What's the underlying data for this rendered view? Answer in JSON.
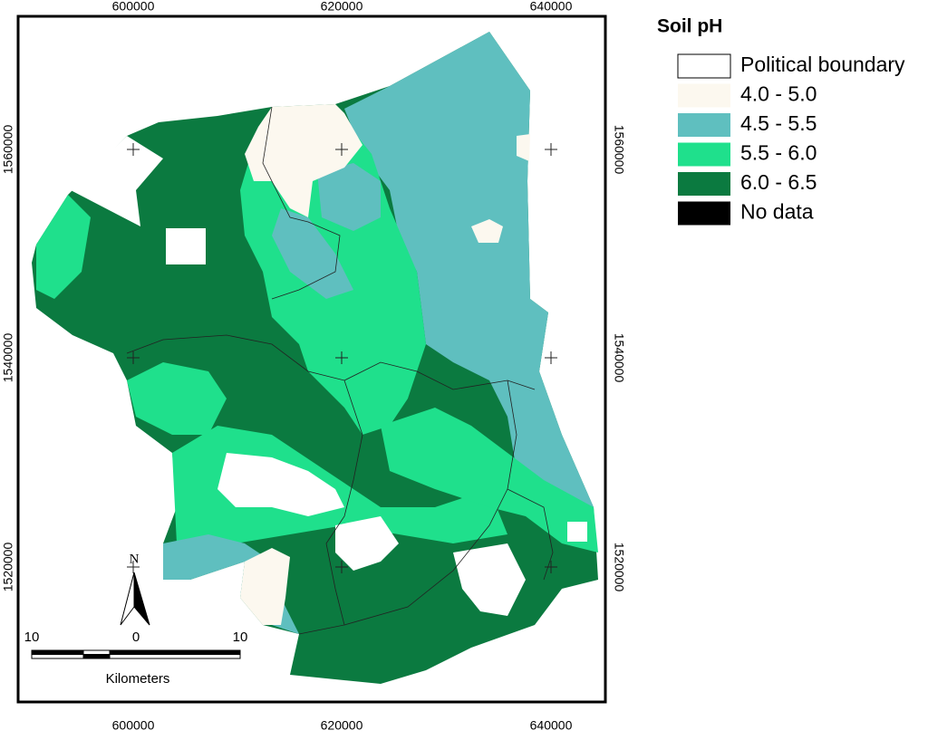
{
  "map": {
    "x_labels": [
      "600000",
      "620000",
      "640000"
    ],
    "y_labels": [
      "1560000",
      "1540000",
      "1520000"
    ],
    "legend": {
      "title": "Soil pH",
      "items": [
        {
          "label": "Political boundary",
          "color": "#ffffff"
        },
        {
          "label": "4.0 - 5.0",
          "color": "#fcf8ef"
        },
        {
          "label": "4.5 - 5.5",
          "color": "#5fbfbf"
        },
        {
          "label": "5.5 - 6.0",
          "color": "#1fe08c"
        },
        {
          "label": "6.0 - 6.5",
          "color": "#0b7a40"
        },
        {
          "label": "No data",
          "color": "#000000"
        }
      ]
    },
    "north": "N",
    "scale": {
      "labels": [
        "10",
        "0",
        "10"
      ],
      "unit": "Kilometers"
    }
  }
}
